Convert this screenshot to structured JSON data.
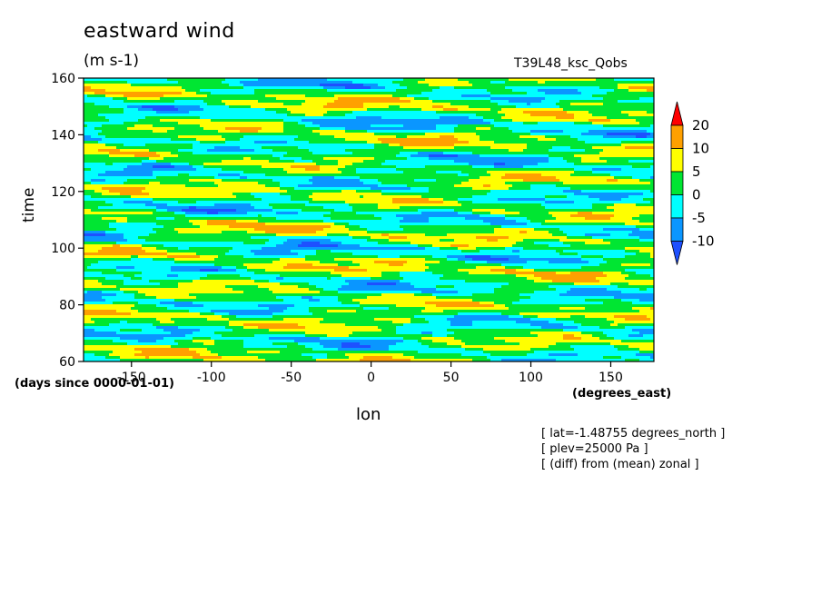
{
  "chart_data": {
    "type": "heatmap",
    "title": "eastward wind",
    "units": "(m s-1)",
    "run": "T39L48_ksc_Qobs",
    "xlabel": "lon",
    "x_units": "(degrees_east)",
    "ylabel": "time",
    "y_units": "(days since 0000-01-01)",
    "xlim": [
      -180,
      177
    ],
    "ylim": [
      60,
      160
    ],
    "x_ticks": [
      "-150",
      "-100",
      "-50",
      "0",
      "50",
      "100",
      "150"
    ],
    "y_ticks": [
      "60",
      "80",
      "100",
      "120",
      "140",
      "160"
    ],
    "x_tick_values": [
      -150,
      -100,
      -50,
      0,
      50,
      100,
      150
    ],
    "y_tick_values": [
      60,
      80,
      100,
      120,
      140,
      160
    ],
    "contour_levels": [
      -10,
      -5,
      0,
      5,
      10,
      20
    ],
    "colorbar_labels": [
      "20",
      "10",
      "5",
      "0",
      "-5",
      "-10"
    ],
    "colors": [
      "#1e50ff",
      "#0a96ff",
      "#00ffff",
      "#00e632",
      "#ffff00",
      "#ffa000",
      "#ff0000"
    ],
    "notes": [
      "[ lat=-1.48755 degrees_north ]",
      "[ plev=25000 Pa ]",
      "[ (diff) from (mean) zonal ]"
    ]
  }
}
